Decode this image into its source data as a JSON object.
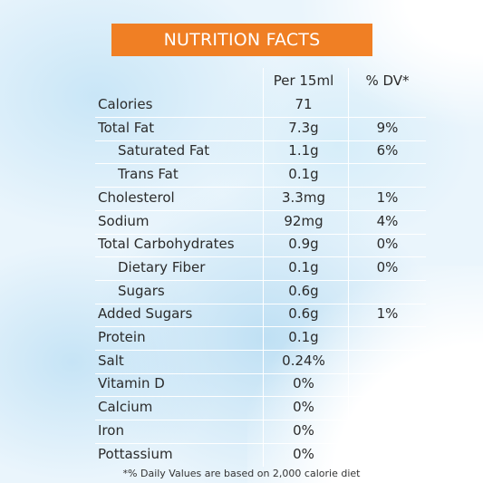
{
  "title": "NUTRITION FACTS",
  "headers": {
    "per": "Per 15ml",
    "dv": "% DV*"
  },
  "rows": [
    {
      "label": "Calories",
      "value": "71",
      "dv": "",
      "indent": false
    },
    {
      "label": "Total Fat",
      "value": "7.3g",
      "dv": "9%",
      "indent": false
    },
    {
      "label": "Saturated Fat",
      "value": "1.1g",
      "dv": "6%",
      "indent": true
    },
    {
      "label": "Trans Fat",
      "value": "0.1g",
      "dv": "",
      "indent": true
    },
    {
      "label": "Cholesterol",
      "value": "3.3mg",
      "dv": "1%",
      "indent": false
    },
    {
      "label": "Sodium",
      "value": "92mg",
      "dv": "4%",
      "indent": false
    },
    {
      "label": "Total Carbohydrates",
      "value": "0.9g",
      "dv": "0%",
      "indent": false
    },
    {
      "label": "Dietary Fiber",
      "value": "0.1g",
      "dv": "0%",
      "indent": true
    },
    {
      "label": "Sugars",
      "value": "0.6g",
      "dv": "",
      "indent": true
    },
    {
      "label": "Added Sugars",
      "value": "0.6g",
      "dv": "1%",
      "indent": false
    },
    {
      "label": "Protein",
      "value": "0.1g",
      "dv": "",
      "indent": false
    },
    {
      "label": "Salt",
      "value": "0.24%",
      "dv": "",
      "indent": false
    },
    {
      "label": "Vitamin D",
      "value": "0%",
      "dv": "",
      "indent": false
    },
    {
      "label": "Calcium",
      "value": "0%",
      "dv": "",
      "indent": false
    },
    {
      "label": "Iron",
      "value": "0%",
      "dv": "",
      "indent": false
    },
    {
      "label": "Pottassium",
      "value": "0%",
      "dv": "",
      "indent": false
    }
  ],
  "footnote": "*% Daily Values are based on 2,000 calorie diet",
  "colors": {
    "accent": "#f07f24",
    "text": "#2b2b2b",
    "background": "#eaf5fc"
  }
}
